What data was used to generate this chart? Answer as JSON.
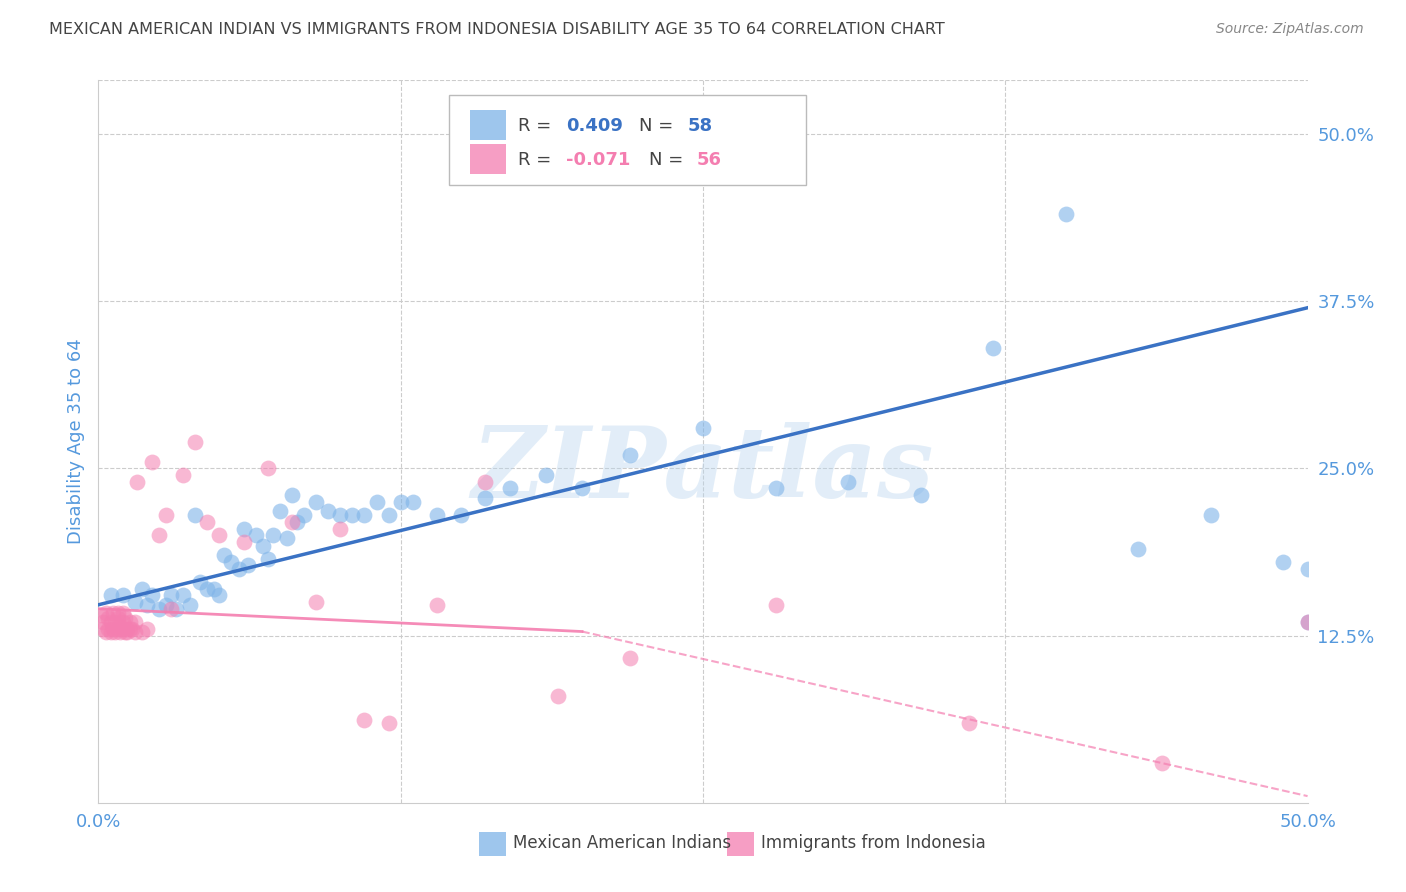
{
  "title": "MEXICAN AMERICAN INDIAN VS IMMIGRANTS FROM INDONESIA DISABILITY AGE 35 TO 64 CORRELATION CHART",
  "source": "Source: ZipAtlas.com",
  "ylabel": "Disability Age 35 to 64",
  "ytick_labels": [
    "12.5%",
    "25.0%",
    "37.5%",
    "50.0%"
  ],
  "ytick_values": [
    0.125,
    0.25,
    0.375,
    0.5
  ],
  "xlim": [
    0.0,
    0.5
  ],
  "ylim": [
    0.0,
    0.54
  ],
  "watermark": "ZIPatlas",
  "legend_blue_r": "0.409",
  "legend_blue_n": "58",
  "legend_pink_r": "-0.071",
  "legend_pink_n": "56",
  "blue_color": "#7EB3E8",
  "pink_color": "#F47EB0",
  "blue_line_color": "#3A72C4",
  "pink_line_color": "#F47EB0",
  "axis_label_color": "#5599DD",
  "title_color": "#444444",
  "blue_points_x": [
    0.005,
    0.01,
    0.015,
    0.018,
    0.02,
    0.022,
    0.025,
    0.028,
    0.03,
    0.032,
    0.035,
    0.038,
    0.04,
    0.042,
    0.045,
    0.048,
    0.05,
    0.052,
    0.055,
    0.058,
    0.06,
    0.062,
    0.065,
    0.068,
    0.07,
    0.072,
    0.075,
    0.078,
    0.08,
    0.082,
    0.085,
    0.09,
    0.095,
    0.1,
    0.105,
    0.11,
    0.115,
    0.12,
    0.125,
    0.13,
    0.14,
    0.15,
    0.16,
    0.17,
    0.185,
    0.2,
    0.22,
    0.25,
    0.28,
    0.31,
    0.34,
    0.37,
    0.4,
    0.43,
    0.46,
    0.49,
    0.5,
    0.5
  ],
  "blue_points_y": [
    0.155,
    0.155,
    0.15,
    0.16,
    0.148,
    0.155,
    0.145,
    0.148,
    0.155,
    0.145,
    0.155,
    0.148,
    0.215,
    0.165,
    0.16,
    0.16,
    0.155,
    0.185,
    0.18,
    0.175,
    0.205,
    0.178,
    0.2,
    0.192,
    0.182,
    0.2,
    0.218,
    0.198,
    0.23,
    0.21,
    0.215,
    0.225,
    0.218,
    0.215,
    0.215,
    0.215,
    0.225,
    0.215,
    0.225,
    0.225,
    0.215,
    0.215,
    0.228,
    0.235,
    0.245,
    0.235,
    0.26,
    0.28,
    0.235,
    0.24,
    0.23,
    0.34,
    0.44,
    0.19,
    0.215,
    0.18,
    0.135,
    0.175
  ],
  "pink_points_x": [
    0.001,
    0.002,
    0.002,
    0.003,
    0.003,
    0.004,
    0.004,
    0.005,
    0.005,
    0.006,
    0.006,
    0.007,
    0.007,
    0.008,
    0.008,
    0.008,
    0.009,
    0.009,
    0.01,
    0.01,
    0.01,
    0.011,
    0.011,
    0.012,
    0.012,
    0.013,
    0.013,
    0.014,
    0.015,
    0.015,
    0.016,
    0.018,
    0.02,
    0.022,
    0.025,
    0.028,
    0.03,
    0.035,
    0.04,
    0.045,
    0.05,
    0.06,
    0.07,
    0.08,
    0.09,
    0.1,
    0.11,
    0.12,
    0.14,
    0.16,
    0.19,
    0.22,
    0.28,
    0.36,
    0.44,
    0.5
  ],
  "pink_points_y": [
    0.14,
    0.135,
    0.13,
    0.142,
    0.128,
    0.138,
    0.13,
    0.135,
    0.128,
    0.142,
    0.13,
    0.135,
    0.128,
    0.13,
    0.142,
    0.138,
    0.132,
    0.128,
    0.135,
    0.13,
    0.142,
    0.128,
    0.138,
    0.13,
    0.128,
    0.13,
    0.135,
    0.13,
    0.128,
    0.135,
    0.24,
    0.128,
    0.13,
    0.255,
    0.2,
    0.215,
    0.145,
    0.245,
    0.27,
    0.21,
    0.2,
    0.195,
    0.25,
    0.21,
    0.15,
    0.205,
    0.062,
    0.06,
    0.148,
    0.24,
    0.08,
    0.108,
    0.148,
    0.06,
    0.03,
    0.135
  ],
  "background_color": "#FFFFFF",
  "grid_color": "#CCCCCC",
  "blue_line_start_x": 0.0,
  "blue_line_start_y": 0.148,
  "blue_line_end_x": 0.5,
  "blue_line_end_y": 0.37,
  "pink_line_start_x": 0.0,
  "pink_line_start_y": 0.145,
  "pink_line_solid_end_x": 0.2,
  "pink_line_solid_end_y": 0.128,
  "pink_line_dash_end_x": 0.5,
  "pink_line_dash_end_y": 0.005
}
